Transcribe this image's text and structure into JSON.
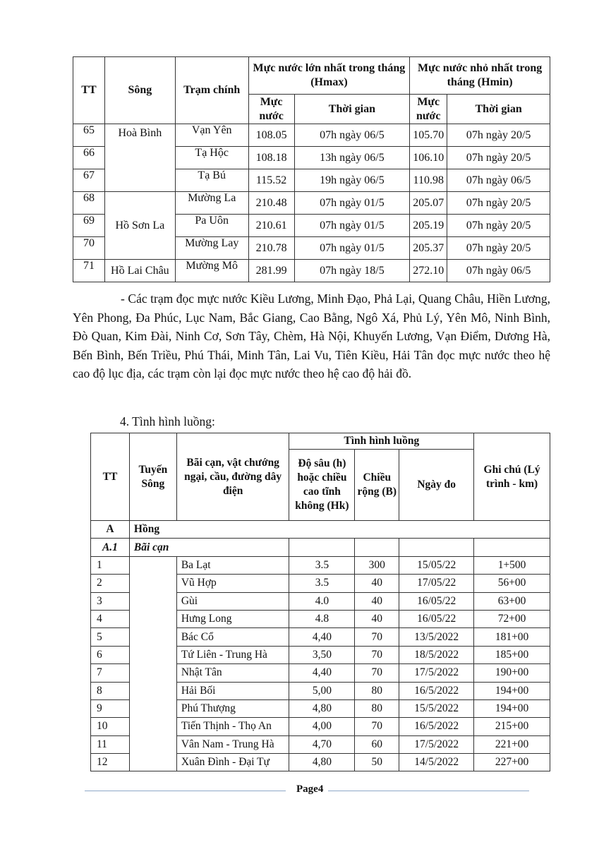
{
  "table1": {
    "headers": {
      "tt": "TT",
      "song": "Sông",
      "tram": "Trạm chính",
      "hmax": "Mực nước lớn nhất trong tháng (Hmax)",
      "hmin": "Mực nước nhỏ nhất trong tháng (Hmin)",
      "muc_nuoc": "Mực nước",
      "thoi_gian": "Thời gian"
    },
    "groups": [
      {
        "song": "Hoà Bình",
        "span": 3
      },
      {
        "song": "Hồ Sơn La",
        "span": 3
      },
      {
        "song": "Hồ Lai Châu",
        "span": 1
      }
    ],
    "rows": [
      [
        "65",
        "Vạn Yên",
        "108.05",
        "07h ngày 06/5",
        "105.70",
        "07h ngày 20/5"
      ],
      [
        "66",
        "Tạ Hộc",
        "108.18",
        "13h ngày 06/5",
        "106.10",
        "07h ngày 20/5"
      ],
      [
        "67",
        "Tạ Bú",
        "115.52",
        "19h ngày 06/5",
        "110.98",
        "07h ngày 06/5"
      ],
      [
        "68",
        "Mường La",
        "210.48",
        "07h ngày 01/5",
        "205.07",
        "07h ngày 20/5"
      ],
      [
        "69",
        "Pa Uôn",
        "210.61",
        "07h ngày 01/5",
        "205.19",
        "07h ngày 20/5"
      ],
      [
        "70",
        "Mường Lay",
        "210.78",
        "07h ngày 01/5",
        "205.37",
        "07h ngày 20/5"
      ],
      [
        "71",
        "Mường Mô",
        "281.99",
        "07h ngày 18/5",
        "272.10",
        "07h ngày 06/5"
      ]
    ]
  },
  "paragraph": "- Các trạm đọc mực nước Kiều Lương, Minh Đạo, Phả Lại, Quang Châu, Hiền Lương, Yên Phong, Đa Phúc, Lục Nam, Bắc Giang, Cao Bằng, Ngô Xá, Phủ Lý, Yên Mô, Ninh Bình, Đò Quan, Kim Đài, Ninh Cơ, Sơn Tây, Chèm, Hà Nội, Khuyến Lương, Vạn Điểm, Dương Hà, Bến Bình, Bến Triều, Phú Thái, Minh Tân, Lai Vu, Tiên Kiều, Hải Tân đọc mực nước theo hệ cao độ lục địa, các trạm còn lại đọc mực nước theo hệ cao độ hải đồ.",
  "section_title": "4. Tình hình luồng:",
  "table2": {
    "headers": {
      "tt": "TT",
      "tuyen": "Tuyến Sông",
      "bai_can": "Bãi cạn, vật chướng ngại, cầu, đường dây điện",
      "tinh_hinh": "Tình hình luồng",
      "do_sau": "Độ sâu (h) hoặc chiều cao tĩnh không (Hk)",
      "chieu_rong": "Chiều rộng (B)",
      "ngay_do": "Ngày đo",
      "ghi_chu": "Ghi chú (Lý trình - km)"
    },
    "section_a": {
      "tt": "A",
      "label": "Hồng"
    },
    "section_a1": {
      "tt": "A.1",
      "label": "Bãi cạn"
    },
    "rows": [
      [
        "1",
        "Ba Lạt",
        "3.5",
        "300",
        "15/05/22",
        "1+500"
      ],
      [
        "2",
        "Vũ Hợp",
        "3.5",
        "40",
        "17/05/22",
        "56+00"
      ],
      [
        "3",
        "Gùi",
        "4.0",
        "40",
        "16/05/22",
        "63+00"
      ],
      [
        "4",
        "Hưng Long",
        "4.8",
        "40",
        "16/05/22",
        "72+00"
      ],
      [
        "5",
        "Bác Cổ",
        "4,40",
        "70",
        "13/5/2022",
        "181+00"
      ],
      [
        "6",
        "Tứ Liên - Trung Hà",
        "3,50",
        "70",
        "18/5/2022",
        "185+00"
      ],
      [
        "7",
        "Nhật Tân",
        "4,40",
        "70",
        "17/5/2022",
        "190+00"
      ],
      [
        "8",
        "Hải Bối",
        "5,00",
        "80",
        "16/5/2022",
        "194+00"
      ],
      [
        "9",
        "Phú Thượng",
        "4,80",
        "80",
        "15/5/2022",
        "194+00"
      ],
      [
        "10",
        "Tiến Thịnh - Thọ An",
        "4,00",
        "70",
        "16/5/2022",
        "215+00"
      ],
      [
        "11",
        "Vân Nam - Trung Hà",
        "4,70",
        "60",
        "17/5/2022",
        "221+00"
      ],
      [
        "12",
        "Xuân Đình - Đại Tự",
        "4,80",
        "50",
        "14/5/2022",
        "227+00"
      ]
    ]
  },
  "footer": {
    "page": "Page4"
  }
}
